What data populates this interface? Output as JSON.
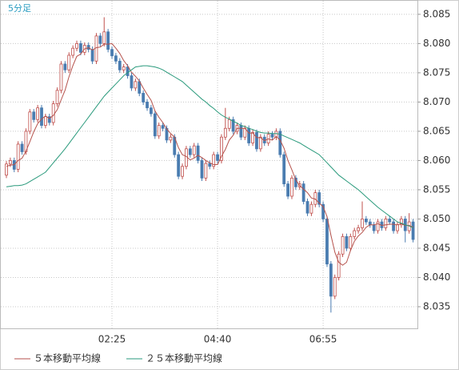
{
  "chart_data": {
    "type": "candlestick",
    "title": "5分足",
    "categories": [
      null,
      null,
      null,
      null,
      null,
      null,
      null,
      null,
      null,
      null,
      null,
      null,
      null,
      null,
      null,
      null,
      null,
      null,
      null,
      null,
      null,
      null,
      null,
      null,
      null,
      null,
      null,
      "02:25",
      null,
      null,
      null,
      null,
      null,
      null,
      null,
      null,
      null,
      null,
      null,
      null,
      null,
      null,
      null,
      null,
      null,
      null,
      null,
      null,
      null,
      null,
      null,
      null,
      null,
      null,
      "04:40",
      null,
      null,
      null,
      null,
      null,
      null,
      null,
      null,
      null,
      null,
      null,
      null,
      null,
      null,
      null,
      null,
      null,
      null,
      null,
      null,
      null,
      null,
      null,
      null,
      null,
      null,
      "06:55",
      null,
      null,
      null,
      null,
      null,
      null,
      null,
      null,
      null,
      null,
      null,
      null,
      null,
      null,
      null,
      null,
      null,
      null,
      null,
      null,
      null,
      null,
      null
    ],
    "up_color": "#c0504d",
    "down_color": "#4a7cb0",
    "open": [
      8.0575,
      8.0594,
      8.06,
      8.0585,
      8.0628,
      8.0615,
      8.065,
      8.0683,
      8.067,
      8.069,
      8.066,
      8.0675,
      8.0665,
      8.0697,
      8.072,
      8.0765,
      8.0755,
      8.078,
      8.0792,
      8.08,
      8.0785,
      8.0797,
      8.079,
      8.077,
      8.0813,
      8.08,
      8.082,
      8.079,
      8.0779,
      8.077,
      8.0755,
      8.076,
      8.0745,
      8.0724,
      8.0735,
      8.0715,
      8.07,
      8.069,
      8.068,
      8.0642,
      8.066,
      8.0655,
      8.0635,
      8.064,
      8.061,
      8.0573,
      8.059,
      8.062,
      8.061,
      8.0625,
      8.06,
      8.057,
      8.0595,
      8.059,
      8.061,
      8.06,
      8.064,
      8.0655,
      8.067,
      8.065,
      8.066,
      8.064,
      8.0655,
      8.063,
      8.0648,
      8.062,
      8.064,
      8.063,
      8.0645,
      8.064,
      8.065,
      8.061,
      8.056,
      8.0539,
      8.057,
      8.0555,
      8.056,
      8.053,
      8.051,
      8.0525,
      8.0545,
      8.0525,
      8.05,
      8.0423,
      8.0368,
      8.04,
      8.044,
      8.047,
      8.045,
      8.047,
      8.048,
      8.0485,
      8.05,
      8.0495,
      8.049,
      8.048,
      8.0495,
      8.0485,
      8.05,
      8.0495,
      8.048,
      8.049,
      8.05,
      8.048,
      8.0495
    ],
    "high": [
      8.0599,
      8.0605,
      8.0605,
      8.0633,
      8.0633,
      8.0655,
      8.0688,
      8.0688,
      8.0695,
      8.0695,
      8.068,
      8.068,
      8.0702,
      8.0725,
      8.077,
      8.077,
      8.0785,
      8.0797,
      8.0805,
      8.0805,
      8.0802,
      8.0802,
      8.0795,
      8.0818,
      8.0818,
      8.0845,
      8.0825,
      8.0795,
      8.0784,
      8.0775,
      8.0765,
      8.0765,
      8.075,
      8.074,
      8.074,
      8.072,
      8.0705,
      8.0695,
      8.0685,
      8.0665,
      8.0665,
      8.066,
      8.0645,
      8.0645,
      8.0615,
      8.0595,
      8.0625,
      8.0625,
      8.063,
      8.063,
      8.0605,
      8.06,
      8.06,
      8.0615,
      8.0615,
      8.0645,
      8.069,
      8.0675,
      8.0675,
      8.0665,
      8.0665,
      8.066,
      8.066,
      8.0653,
      8.0653,
      8.0645,
      8.0645,
      8.065,
      8.065,
      8.0655,
      8.0655,
      8.0615,
      8.0565,
      8.0575,
      8.0575,
      8.0565,
      8.0565,
      8.0535,
      8.053,
      8.055,
      8.055,
      8.053,
      8.0505,
      8.0428,
      8.0405,
      8.0445,
      8.0475,
      8.0475,
      8.0475,
      8.0485,
      8.049,
      8.053,
      8.0505,
      8.05,
      8.0495,
      8.05,
      8.05,
      8.0505,
      8.0505,
      8.05,
      8.0495,
      8.0505,
      8.0505,
      8.051,
      8.05
    ],
    "low": [
      8.057,
      8.0589,
      8.058,
      8.058,
      8.061,
      8.061,
      8.0645,
      8.0665,
      8.0665,
      8.0655,
      8.0655,
      8.066,
      8.066,
      8.0692,
      8.0715,
      8.075,
      8.075,
      8.0775,
      8.0787,
      8.078,
      8.078,
      8.0785,
      8.0765,
      8.0765,
      8.0795,
      8.0795,
      8.0785,
      8.0774,
      8.0765,
      8.075,
      8.075,
      8.074,
      8.0719,
      8.0719,
      8.071,
      8.0695,
      8.0685,
      8.0675,
      8.0637,
      8.0637,
      8.065,
      8.063,
      8.063,
      8.0605,
      8.0568,
      8.0568,
      8.0585,
      8.0605,
      8.0605,
      8.0595,
      8.0565,
      8.0565,
      8.0585,
      8.0585,
      8.0595,
      8.0595,
      8.0635,
      8.065,
      8.0645,
      8.0645,
      8.0635,
      8.0635,
      8.0625,
      8.0625,
      8.0615,
      8.0615,
      8.0625,
      8.0625,
      8.0635,
      8.0635,
      8.0605,
      8.0555,
      8.0534,
      8.0534,
      8.055,
      8.055,
      8.0525,
      8.0505,
      8.0505,
      8.052,
      8.052,
      8.0495,
      8.0418,
      8.034,
      8.0363,
      8.0395,
      8.0435,
      8.0445,
      8.0445,
      8.0465,
      8.0475,
      8.048,
      8.049,
      8.0485,
      8.0475,
      8.0475,
      8.048,
      8.048,
      8.049,
      8.0475,
      8.0475,
      8.0485,
      8.046,
      8.0475,
      8.046
    ],
    "close": [
      8.0594,
      8.06,
      8.0585,
      8.0628,
      8.0615,
      8.065,
      8.0683,
      8.067,
      8.069,
      8.066,
      8.0675,
      8.0665,
      8.0697,
      8.072,
      8.0765,
      8.0755,
      8.078,
      8.0792,
      8.08,
      8.0785,
      8.0797,
      8.079,
      8.077,
      8.0813,
      8.08,
      8.082,
      8.079,
      8.0779,
      8.077,
      8.0755,
      8.076,
      8.0745,
      8.0724,
      8.0735,
      8.0715,
      8.07,
      8.069,
      8.068,
      8.0642,
      8.066,
      8.0655,
      8.0635,
      8.064,
      8.061,
      8.0573,
      8.059,
      8.062,
      8.061,
      8.0625,
      8.06,
      8.057,
      8.0595,
      8.059,
      8.061,
      8.06,
      8.064,
      8.0655,
      8.067,
      8.065,
      8.066,
      8.064,
      8.0655,
      8.063,
      8.0648,
      8.062,
      8.064,
      8.063,
      8.0645,
      8.064,
      8.065,
      8.061,
      8.056,
      8.0539,
      8.057,
      8.0555,
      8.056,
      8.053,
      8.051,
      8.0525,
      8.0545,
      8.0525,
      8.05,
      8.0423,
      8.0368,
      8.04,
      8.044,
      8.047,
      8.045,
      8.047,
      8.048,
      8.0485,
      8.05,
      8.0495,
      8.049,
      8.048,
      8.0495,
      8.0485,
      8.05,
      8.0495,
      8.048,
      8.049,
      8.05,
      8.048,
      8.0495,
      8.0465
    ],
    "series": [
      {
        "name": "５本移動平均線",
        "color": "#b5524c",
        "values": [
          8.059,
          8.0592,
          8.0593,
          8.06,
          8.0604,
          8.0616,
          8.0632,
          8.0649,
          8.0663,
          8.0671,
          8.0676,
          8.0672,
          8.0677,
          8.0687,
          8.0704,
          8.072,
          8.0743,
          8.0762,
          8.0778,
          8.0782,
          8.0791,
          8.0793,
          8.0789,
          8.0793,
          8.0794,
          8.0799,
          8.0799,
          8.08,
          8.0792,
          8.0783,
          8.0771,
          8.0762,
          8.0751,
          8.0744,
          8.0736,
          8.0724,
          8.0713,
          8.0703,
          8.0685,
          8.0674,
          8.0665,
          8.0654,
          8.0646,
          8.064,
          8.0622,
          8.061,
          8.0607,
          8.0601,
          8.0604,
          8.0609,
          8.0605,
          8.06,
          8.0596,
          8.0593,
          8.0593,
          8.0607,
          8.0619,
          8.0635,
          8.0643,
          8.0655,
          8.0655,
          8.0655,
          8.0647,
          8.0647,
          8.0639,
          8.0639,
          8.0634,
          8.0637,
          8.0635,
          8.0641,
          8.0635,
          8.0621,
          8.06,
          8.0584,
          8.0567,
          8.0557,
          8.0551,
          8.0545,
          8.0536,
          8.0534,
          8.0527,
          8.0521,
          8.0504,
          8.0472,
          8.0443,
          8.0426,
          8.0421,
          8.0426,
          8.0446,
          8.0462,
          8.0471,
          8.0477,
          8.0486,
          8.049,
          8.049,
          8.0492,
          8.0489,
          8.049,
          8.0491,
          8.0491,
          8.049,
          8.0492,
          8.0489,
          8.0489,
          8.0486
        ]
      },
      {
        "name": "２５本移動平均線",
        "color": "#2a9a7c",
        "values": [
          8.0555,
          8.0556,
          8.0557,
          8.0557,
          8.0558,
          8.056,
          8.0564,
          8.0568,
          8.0572,
          8.0576,
          8.058,
          8.0588,
          8.0596,
          8.0604,
          8.0612,
          8.062,
          8.0629,
          8.0638,
          8.0647,
          8.0656,
          8.0665,
          8.0674,
          8.0683,
          8.0692,
          8.0701,
          8.071,
          8.0717,
          8.0724,
          8.0731,
          8.0738,
          8.0745,
          8.075,
          8.0755,
          8.076,
          8.0761,
          8.0762,
          8.0762,
          8.0761,
          8.076,
          8.0758,
          8.0755,
          8.0751,
          8.0747,
          8.0743,
          8.0739,
          8.0735,
          8.0729,
          8.0723,
          8.0717,
          8.0711,
          8.0705,
          8.07,
          8.0694,
          8.0689,
          8.0683,
          8.0678,
          8.0674,
          8.0671,
          8.0667,
          8.0664,
          8.066,
          8.0658,
          8.0655,
          8.0653,
          8.065,
          8.0648,
          8.0647,
          8.0647,
          8.0646,
          8.0646,
          8.0645,
          8.0642,
          8.0639,
          8.0636,
          8.0633,
          8.063,
          8.0626,
          8.0622,
          8.0618,
          8.0614,
          8.061,
          8.0603,
          8.0596,
          8.0589,
          8.0582,
          8.0575,
          8.057,
          8.0565,
          8.056,
          8.0555,
          8.055,
          8.0544,
          8.0538,
          8.0532,
          8.0526,
          8.052,
          8.0515,
          8.051,
          8.0505,
          8.05,
          8.0495,
          8.0493,
          8.049,
          8.0488,
          8.0485
        ]
      }
    ],
    "ylim": [
      8.0313,
      8.0869
    ],
    "yticks": [
      8.035,
      {
        "value": 8.04,
        "label": "8.040"
      },
      8.045,
      {
        "value": 8.05,
        "label": "8.050"
      },
      8.055,
      {
        "value": 8.06,
        "label": "8.060"
      },
      8.065,
      {
        "value": 8.07,
        "label": "8.070"
      },
      8.075,
      {
        "value": 8.08,
        "label": "8.080"
      },
      8.085
    ],
    "grid": true
  }
}
